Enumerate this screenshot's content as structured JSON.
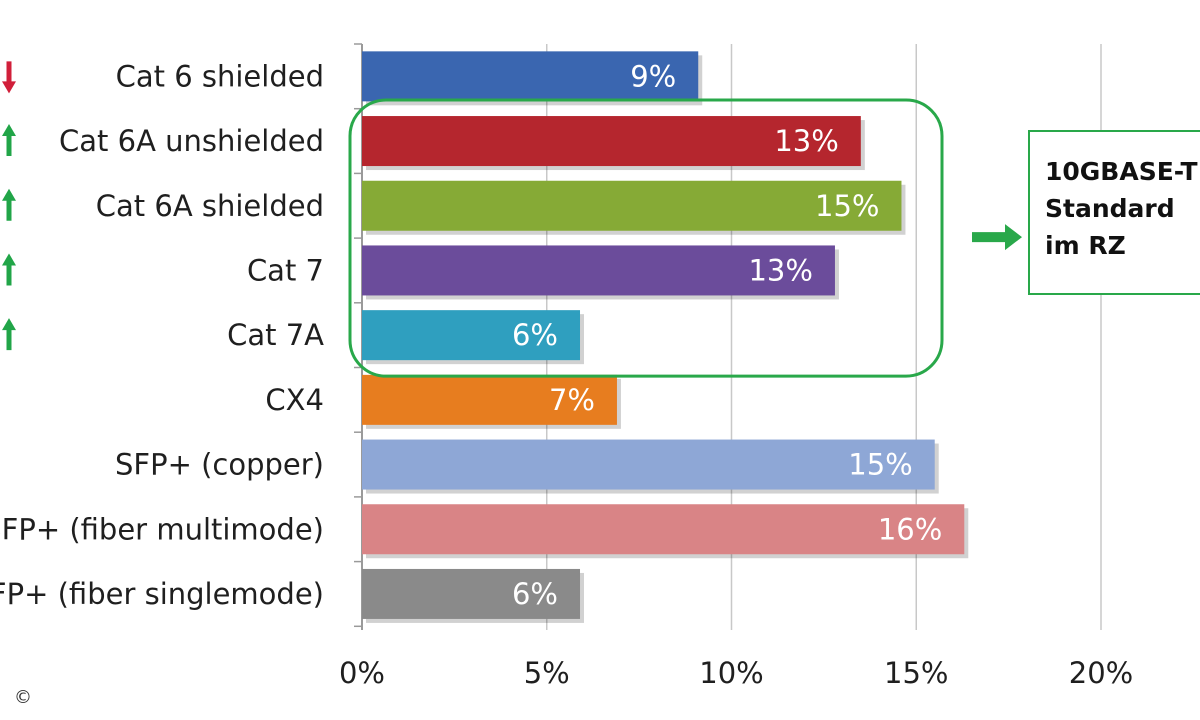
{
  "chart_data": {
    "type": "bar",
    "orientation": "horizontal",
    "categories": [
      "Cat 6 shielded",
      "Cat 6A unshielded",
      "Cat 6A shielded",
      "Cat 7",
      "Cat 7A",
      "CX4",
      "SFP+ (copper)",
      "SFP+ (fiber multimode)",
      "SFP+ (fiber singlemode)"
    ],
    "values": [
      9.1,
      13.5,
      14.6,
      12.8,
      5.9,
      6.9,
      15.5,
      16.3,
      5.9
    ],
    "data_labels": [
      "9%",
      "13%",
      "15%",
      "13%",
      "6%",
      "7%",
      "15%",
      "16%",
      "6%"
    ],
    "colors": [
      "#3a66b0",
      "#b5262e",
      "#86aa36",
      "#6b4c9b",
      "#2f9fbf",
      "#e77d1f",
      "#8ea7d6",
      "#d98486",
      "#8a8a8a"
    ],
    "trend_arrows": [
      "down",
      "up",
      "up",
      "up",
      "up",
      null,
      null,
      null,
      null
    ],
    "trend_colors": {
      "up": "#21a548",
      "down": "#d11f3a"
    },
    "xlim": [
      0,
      20
    ],
    "xticks": [
      0,
      5,
      10,
      15,
      20
    ],
    "xtick_labels": [
      "0%",
      "5%",
      "10%",
      "15%",
      "20%"
    ],
    "grid": true,
    "highlight_group": [
      "Cat 6A unshielded",
      "Cat 6A shielded",
      "Cat 7",
      "Cat 7A"
    ],
    "highlight_color": "#29a84a",
    "callout": {
      "lines": [
        "10GBASE-T",
        "Standard",
        "im RZ"
      ]
    }
  },
  "footer": {
    "copyright": "©"
  }
}
